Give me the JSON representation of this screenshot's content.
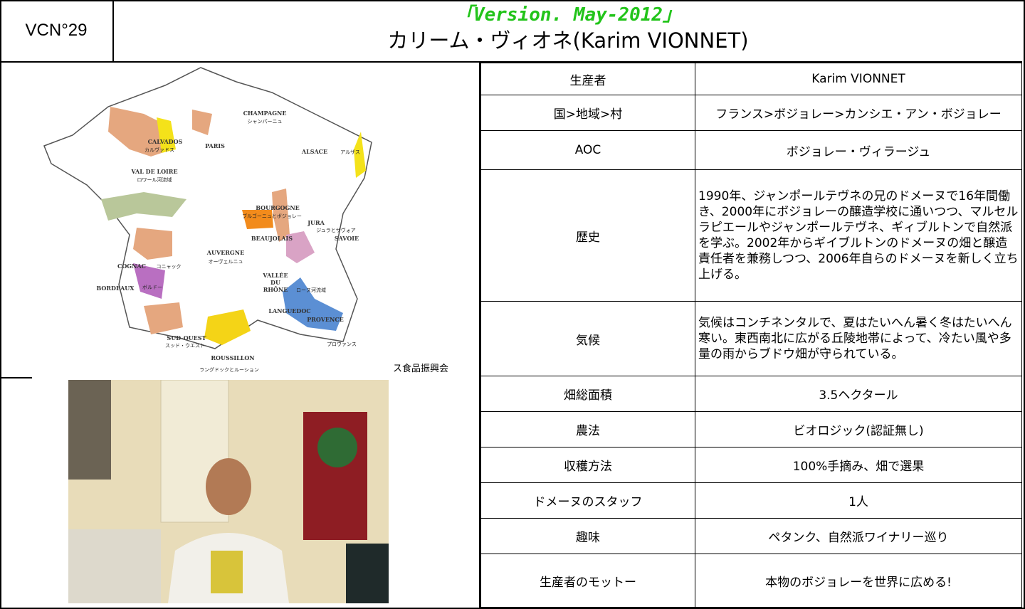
{
  "header": {
    "id": "VCN°29",
    "version": "「Version. May-2012」",
    "title": "カリーム・ヴィオネ(Karim VIONNET)"
  },
  "map": {
    "labels": [
      "CHAMPAGNE",
      "シャンパーニュ",
      "CALVADOS",
      "カルヴァドス",
      "PARIS",
      "ALSACE",
      "アルザス",
      "VAL DE LOIRE",
      "ロワール河流域",
      "BOURGOGNE",
      "ブルゴーニュとボジョレー",
      "JURA",
      "ジュラとサヴォア",
      "SAVOIE",
      "BEAUJOLAIS",
      "COGNAC",
      "コニャック",
      "AUVERGNE",
      "オーヴェルニュ",
      "VALLÉE",
      "DU",
      "RHÔNE",
      "ローヌ河流域",
      "BORDEAUX",
      "ボルドー",
      "LANGUEDOC",
      "PROVENCE",
      "プロヴァンス",
      "SUD-OUEST",
      "スッド・ウエスト",
      "ROUSSILLON",
      "ラングドックとルーション"
    ],
    "credit": "ス食品振興会"
  },
  "table": {
    "rows": [
      [
        "生産者",
        "Karim VIONNET"
      ],
      [
        "国>地域>村",
        "フランス>ボジョレー>カンシエ・アン・ボジョレー"
      ],
      [
        "AOC",
        "ボジョレー・ヴィラージュ"
      ],
      [
        "歴史",
        "1990年、ジャンポールテヴネの兄のドメーヌで16年間働き、2000年にボジョレーの醸造学校に通いつつ、マルセルラピエールやジャンポールテヴネ、ギィブルトンで自然派を学ぶ。2002年からギイブルトンのドメーヌの畑と醸造責任者を兼務しつつ、2006年自らのドメーヌを新しく立ち上げる。"
      ],
      [
        "気候",
        "気候はコンチネンタルで、夏はたいへん暑く冬はたいへん寒い。東西南北に広がる丘陵地帯によって、冷たい風や多量の雨からブドウ畑が守られている。"
      ],
      [
        "畑総面積",
        "3.5ヘクタール"
      ],
      [
        "農法",
        "ビオロジック(認証無し)"
      ],
      [
        "収穫方法",
        "100%手摘み、畑で選果"
      ],
      [
        "ドメーヌのスタッフ",
        "1人"
      ],
      [
        "趣味",
        "ペタンク、自然派ワイナリー巡り"
      ],
      [
        "生産者のモットー",
        "本物のボジョレーを世界に広める!"
      ]
    ]
  }
}
